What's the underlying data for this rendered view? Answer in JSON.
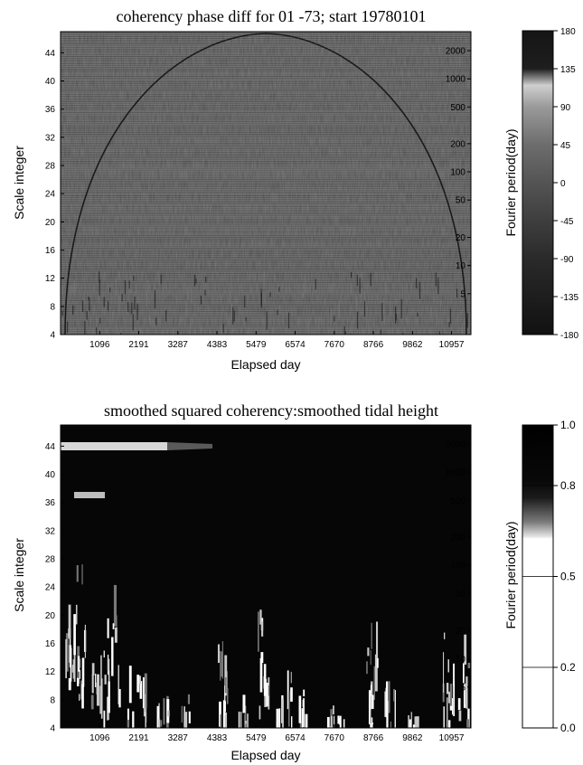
{
  "chart_data": [
    {
      "type": "heatmap",
      "title": "coherency phase diff for 01 -73; start 19780101",
      "xlabel": "Elapsed day",
      "ylabel": "Scale integer",
      "y2label": "Fourier period(day)",
      "x_ticks": [
        "1096",
        "2191",
        "3287",
        "4383",
        "5479",
        "6574",
        "7670",
        "8766",
        "9862",
        "10957"
      ],
      "xlim": [
        0,
        11500
      ],
      "y_ticks": [
        4,
        8,
        12,
        16,
        20,
        24,
        28,
        32,
        36,
        40,
        44
      ],
      "ylim": [
        4,
        47
      ],
      "y2_ticks": [
        {
          "label": "2000",
          "scale": 44.3
        },
        {
          "label": "1000",
          "scale": 40.3
        },
        {
          "label": "500",
          "scale": 36.3
        },
        {
          "label": "200",
          "scale": 31.1
        },
        {
          "label": "100",
          "scale": 27.1
        },
        {
          "label": "50",
          "scale": 23.1
        },
        {
          "label": "20",
          "scale": 17.8
        },
        {
          "label": "10",
          "scale": 13.8
        },
        {
          "label": "5",
          "scale": 9.8
        }
      ],
      "colorbar": {
        "ticks": [
          "180",
          "135",
          "90",
          "45",
          "0",
          "-45",
          "-90",
          "-135",
          "-180"
        ],
        "range": [
          -180,
          180
        ]
      }
    },
    {
      "type": "heatmap",
      "title": "smoothed squared coherency:smoothed tidal height",
      "xlabel": "Elapsed day",
      "ylabel": "Scale integer",
      "y2label": "Fourier period(day)",
      "x_ticks": [
        "1096",
        "2191",
        "3287",
        "4383",
        "5479",
        "6574",
        "7670",
        "8766",
        "9862",
        "10957"
      ],
      "xlim": [
        0,
        11500
      ],
      "y_ticks": [
        4,
        8,
        12,
        16,
        20,
        24,
        28,
        32,
        36,
        40,
        44
      ],
      "ylim": [
        4,
        47
      ],
      "y2_ticks": [
        {
          "label": "2000",
          "scale": 44.3
        },
        {
          "label": "1000",
          "scale": 40.3
        },
        {
          "label": "500",
          "scale": 36.3
        },
        {
          "label": "200",
          "scale": 31.1
        },
        {
          "label": "100",
          "scale": 27.1
        },
        {
          "label": "50",
          "scale": 23.1
        },
        {
          "label": "20",
          "scale": 17.8
        },
        {
          "label": "10",
          "scale": 13.8
        },
        {
          "label": "5",
          "scale": 9.8
        }
      ],
      "colorbar": {
        "ticks": [
          "1.0",
          "0.8",
          "0.5",
          "0.2",
          "0.0"
        ],
        "values": [
          1.0,
          0.8,
          0.5,
          0.2,
          0.0
        ],
        "range": [
          0,
          1
        ]
      }
    }
  ]
}
